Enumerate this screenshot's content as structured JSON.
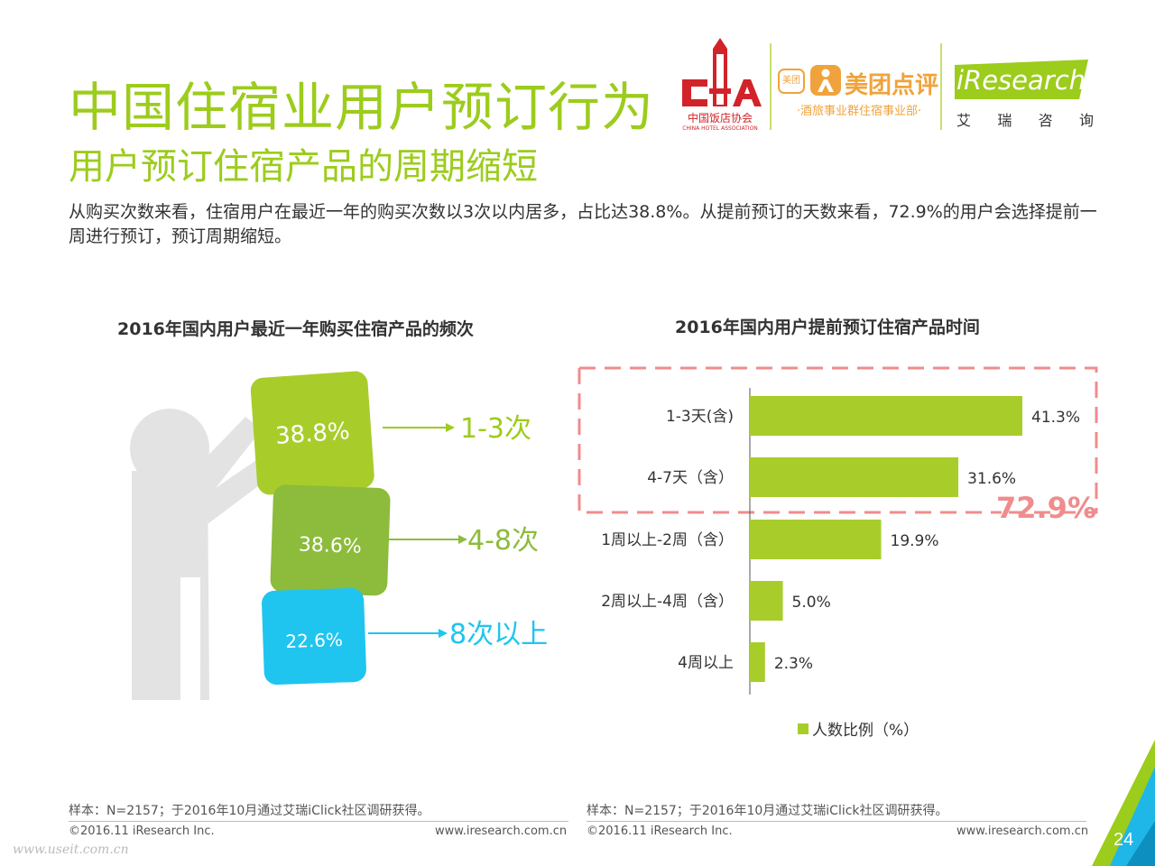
{
  "title": "中国住宿业用户预订行为",
  "subtitle": "用户预订住宿产品的周期缩短",
  "summary": "从购买次数来看，住宿用户在最近一年的购买次数以3次以内居多，占比达38.8%。从提前预订的天数来看，72.9%的用户会选择提前一周进行预订，预订周期缩短。",
  "logos": {
    "chg_cn": "中国饭店协会",
    "chg_en": "CHINA HOTEL ASSOCIATION",
    "meituan_badge": "美团",
    "meituan_name": "美团点评",
    "meituan_sub": "·酒旅事业群住宿事业部·",
    "iresearch_name": "iResearch",
    "iresearch_cn": [
      "艾",
      "瑞",
      "咨",
      "询"
    ]
  },
  "colors": {
    "accent_green": "#9ccc1c",
    "bar_green": "#a8cd2b",
    "block_top": "#a8cd2b",
    "block_mid": "#8dbb3c",
    "block_bottom": "#1fc5ef",
    "highlight_red": "#f08c8c",
    "figure_gray": "#e3e3e3"
  },
  "chart_data": [
    {
      "type": "bar",
      "title": "2016年国内用户最近一年购买住宿产品的频次",
      "categories": [
        "1-3次",
        "4-8次",
        "8次以上"
      ],
      "values": [
        38.8,
        38.6,
        22.6
      ],
      "value_labels": [
        "38.8%",
        "38.6%",
        "22.6%"
      ]
    },
    {
      "type": "bar",
      "orientation": "horizontal",
      "title": "2016年国内用户提前预订住宿产品时间",
      "categories": [
        "1-3天(含)",
        "4-7天（含）",
        "1周以上-2周（含）",
        "2周以上-4周（含）",
        "4周以上"
      ],
      "series": [
        {
          "name": "人数比例（%）",
          "values": [
            41.3,
            31.6,
            19.9,
            5.0,
            2.3
          ]
        }
      ],
      "value_labels": [
        "41.3%",
        "31.6%",
        "19.9%",
        "5.0%",
        "2.3%"
      ],
      "xlim": [
        0,
        41.3
      ],
      "legend": "bottom",
      "annotation": "72.9%"
    }
  ],
  "footer": {
    "left_note": "样本：N=2157；于2016年10月通过艾瑞iClick社区调研获得。",
    "right_note": "样本：N=2157；于2016年10月通过艾瑞iClick社区调研获得。",
    "copyright_left": "©2016.11 iResearch Inc.",
    "url_left": "www.iresearch.com.cn",
    "copyright_right": "©2016.11 iResearch Inc.",
    "url_right": "www.iresearch.com.cn",
    "page": "24",
    "watermark": "www.useit.com.cn"
  }
}
